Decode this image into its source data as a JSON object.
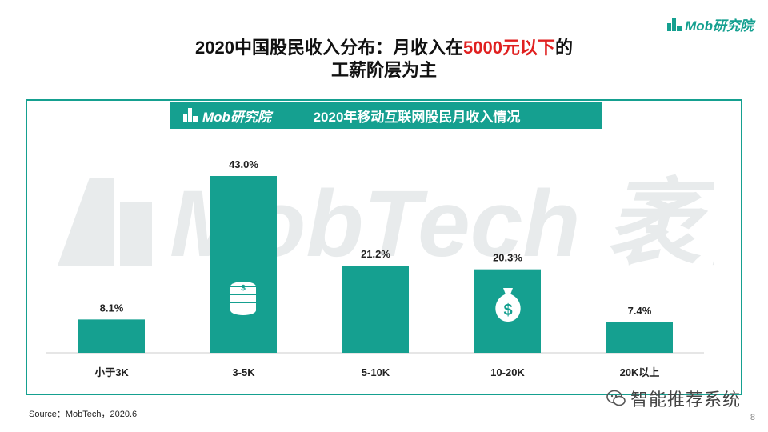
{
  "brand": {
    "name": "Mob研究院",
    "accent_color": "#15a090",
    "watermark": "MobTech 袤博"
  },
  "title": {
    "line1_prefix": "2020中国股民收入分布：月收入在",
    "line1_highlight": "5000元以下",
    "line1_suffix": "的",
    "line2": "工薪阶层为主"
  },
  "banner": {
    "title": "2020年移动互联网股民月收入情况"
  },
  "footer": {
    "source": "Source：MobTech，2020.6",
    "wechat": "智能推荐系统",
    "page": "8"
  },
  "icons": [
    "coin-stack-icon",
    "money-bag-icon",
    "wechat-icon"
  ],
  "chart_data": {
    "type": "bar",
    "categories": [
      "小于3K",
      "3-5K",
      "5-10K",
      "10-20K",
      "20K以上"
    ],
    "values": [
      8.1,
      43.0,
      21.2,
      20.3,
      7.4
    ],
    "labels": [
      "8.1%",
      "43.0%",
      "21.2%",
      "20.3%",
      "7.4%"
    ],
    "title": "2020年移动互联网股民月收入情况",
    "unit": "%",
    "ylim": [
      0,
      43.0
    ],
    "bar_color": "#15a090",
    "grid": false
  }
}
